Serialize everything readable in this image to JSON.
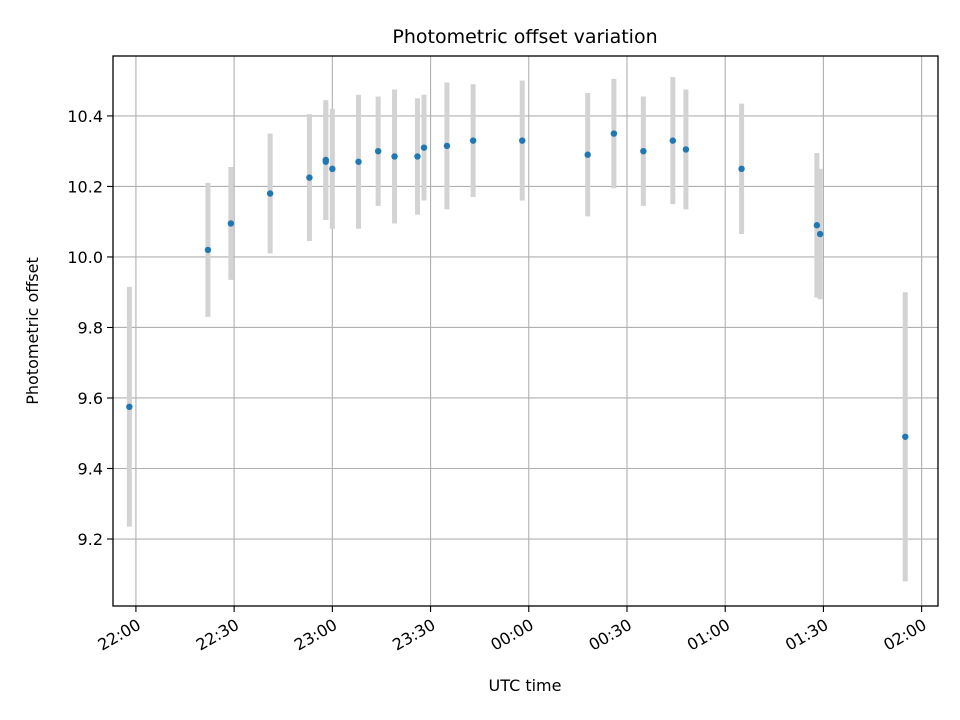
{
  "chart_data": {
    "type": "scatter",
    "title": "Photometric offset variation",
    "xlabel": "UTC time",
    "ylabel": "Photometric offset",
    "x_axis": {
      "kind": "time",
      "range": [
        "21:53",
        "02:05"
      ],
      "ticks": [
        "22:00",
        "22:30",
        "23:00",
        "23:30",
        "00:00",
        "00:30",
        "01:00",
        "01:30",
        "02:00"
      ]
    },
    "y_axis": {
      "range": [
        9.01,
        10.57
      ],
      "ticks": [
        "9.2",
        "9.4",
        "9.6",
        "9.8",
        "10.0",
        "10.2",
        "10.4"
      ]
    },
    "grid": true,
    "colors": {
      "point": "#1f77b4",
      "errorbar": "#d3d3d3",
      "grid": "#b0b0b0"
    },
    "points": [
      {
        "x": "21:58",
        "y": 9.575,
        "yerr": 0.34
      },
      {
        "x": "22:22",
        "y": 10.02,
        "yerr": 0.19
      },
      {
        "x": "22:29",
        "y": 10.095,
        "yerr": 0.16
      },
      {
        "x": "22:41",
        "y": 10.18,
        "yerr": 0.17
      },
      {
        "x": "22:53",
        "y": 10.225,
        "yerr": 0.18
      },
      {
        "x": "22:58",
        "y": 10.27,
        "yerr": 0.165
      },
      {
        "x": "22:58",
        "y": 10.275,
        "yerr": 0.17
      },
      {
        "x": "23:00",
        "y": 10.25,
        "yerr": 0.17
      },
      {
        "x": "23:08",
        "y": 10.27,
        "yerr": 0.19
      },
      {
        "x": "23:14",
        "y": 10.3,
        "yerr": 0.155
      },
      {
        "x": "23:19",
        "y": 10.285,
        "yerr": 0.19
      },
      {
        "x": "23:26",
        "y": 10.285,
        "yerr": 0.165
      },
      {
        "x": "23:28",
        "y": 10.31,
        "yerr": 0.15
      },
      {
        "x": "23:35",
        "y": 10.315,
        "yerr": 0.18
      },
      {
        "x": "23:43",
        "y": 10.33,
        "yerr": 0.16
      },
      {
        "x": "23:58",
        "y": 10.33,
        "yerr": 0.17
      },
      {
        "x": "00:18",
        "y": 10.29,
        "yerr": 0.175
      },
      {
        "x": "00:26",
        "y": 10.35,
        "yerr": 0.155
      },
      {
        "x": "00:35",
        "y": 10.3,
        "yerr": 0.155
      },
      {
        "x": "00:44",
        "y": 10.33,
        "yerr": 0.18
      },
      {
        "x": "00:48",
        "y": 10.305,
        "yerr": 0.17
      },
      {
        "x": "01:05",
        "y": 10.25,
        "yerr": 0.185
      },
      {
        "x": "01:28",
        "y": 10.09,
        "yerr": 0.205
      },
      {
        "x": "01:29",
        "y": 10.065,
        "yerr": 0.185
      },
      {
        "x": "01:55",
        "y": 9.49,
        "yerr": 0.41
      }
    ]
  }
}
